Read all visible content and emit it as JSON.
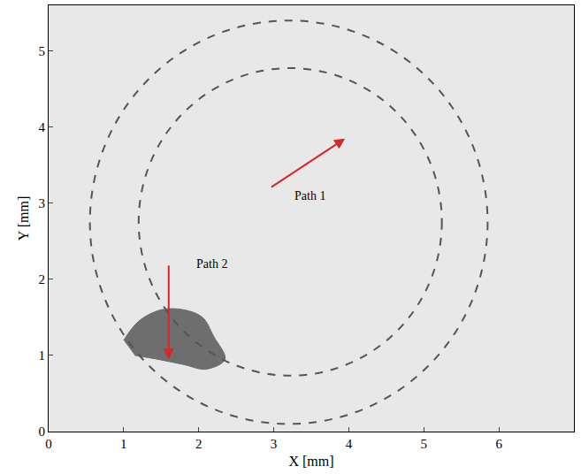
{
  "chart_data": {
    "type": "scatter",
    "x_label": "X [mm]",
    "y_label": "Y [mm]",
    "xlim": [
      0,
      7
    ],
    "ylim": [
      0,
      5.6
    ],
    "xticks": [
      0,
      1,
      2,
      3,
      4,
      5,
      6
    ],
    "yticks": [
      0,
      1,
      2,
      3,
      4,
      5
    ],
    "grid": false,
    "circles": [
      {
        "center": [
          3.2,
          2.75
        ],
        "radius": 2.65,
        "color": "#555555",
        "line_style": "dash"
      },
      {
        "center": [
          3.22,
          2.755
        ],
        "radius": 2.02,
        "color": "#555555",
        "line_style": "dash"
      }
    ],
    "arrows": [
      {
        "label": "Path 1",
        "from": [
          2.95,
          3.2
        ],
        "to": [
          3.95,
          3.85
        ],
        "label_at": [
          3.25,
          3.1
        ],
        "color": "#d62728"
      },
      {
        "label": "Path 2",
        "from": [
          1.6,
          2.2
        ],
        "to": [
          1.6,
          0.95
        ],
        "label_at": [
          1.95,
          2.2
        ],
        "color": "#d62728"
      }
    ],
    "region": {
      "x": [
        1.0,
        1.2,
        1.5,
        1.8,
        2.05,
        2.2,
        2.35,
        2.1,
        1.8,
        1.45,
        1.15
      ],
      "y": [
        1.2,
        1.45,
        1.6,
        1.6,
        1.5,
        1.25,
        0.95,
        0.82,
        0.88,
        0.95,
        1.0
      ],
      "color": "#505050"
    }
  }
}
